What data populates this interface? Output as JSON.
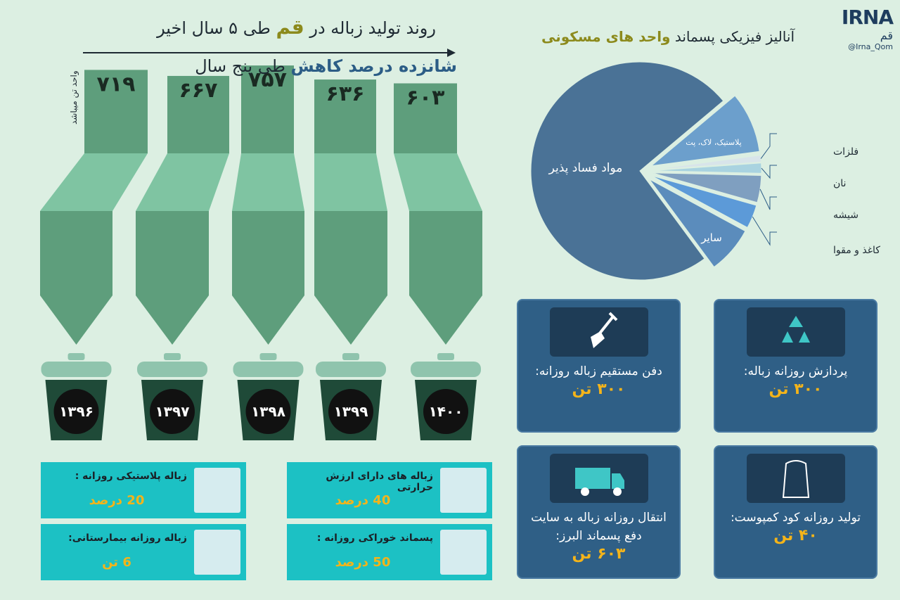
{
  "header": {
    "logo": "IRNA",
    "city": "قم",
    "handle": "@Irna_Qom"
  },
  "trend": {
    "title": [
      "روند تولید زباله در",
      "قم",
      "طی ۵ سال اخیر"
    ],
    "subtitle": [
      "شانزده درصد کاهش",
      "طی پنج سال"
    ],
    "unit": "واحد تن میباشد",
    "bars": [
      {
        "year": "۱۳۹۶",
        "value": 719,
        "label": "۷۱۹"
      },
      {
        "year": "۱۳۹۷",
        "value": 667,
        "label": "۶۶۷"
      },
      {
        "year": "۱۳۹۸",
        "value": 757,
        "label": "۷۵۷"
      },
      {
        "year": "۱۳۹۹",
        "value": 636,
        "label": "۶۳۶"
      },
      {
        "year": "۱۴۰۰",
        "value": 603,
        "label": "۶۰۳"
      }
    ]
  },
  "analysis": {
    "title": [
      "آنالیز فیزیکی پسماند",
      "واحد های مسکونی"
    ],
    "slices": [
      {
        "name": "پلاستیک، لاک، پت",
        "value": 9,
        "color": "#6c9fcc"
      },
      {
        "name": "فلزات",
        "value": 1,
        "color": "#d8e4ea"
      },
      {
        "name": "نان",
        "value": 1.5,
        "color": "#a9d3e0"
      },
      {
        "name": "شیشه",
        "value": 4,
        "color": "#7f9fc0"
      },
      {
        "name": "کاغذ و مقوا",
        "value": 3.5,
        "color": "#5c9ad8"
      },
      {
        "name": "سایر",
        "value": 7,
        "color": "#5b8cbc"
      },
      {
        "name": "مواد فساد پذیر",
        "value": 74,
        "color": "#4a7296"
      }
    ]
  },
  "cards": [
    {
      "text": "دفن مستقیم زباله روزانه:",
      "value": "۳۰۰ تن"
    },
    {
      "text": "پردازش روزانه زباله:",
      "value": "۳۰۰ تن"
    },
    {
      "text": "انتقال روزانه زباله به سایت دفع پسماند البرز:",
      "value": "۶۰۳ تن"
    },
    {
      "text": "تولید روزانه کود کمپوست:",
      "value": "۴۰ تن"
    }
  ],
  "facts": [
    {
      "text": "زباله پلاستیکی روزانه :",
      "value": "20 درصد"
    },
    {
      "text": "زباله های دارای ارزش حرارتی",
      "value": "40 درصد"
    },
    {
      "text": "زباله روزانه بیمارستانی:",
      "value": "6 تن"
    },
    {
      "text": "پسماند خوراکی روزانه :",
      "value": "50 درصد"
    }
  ]
}
